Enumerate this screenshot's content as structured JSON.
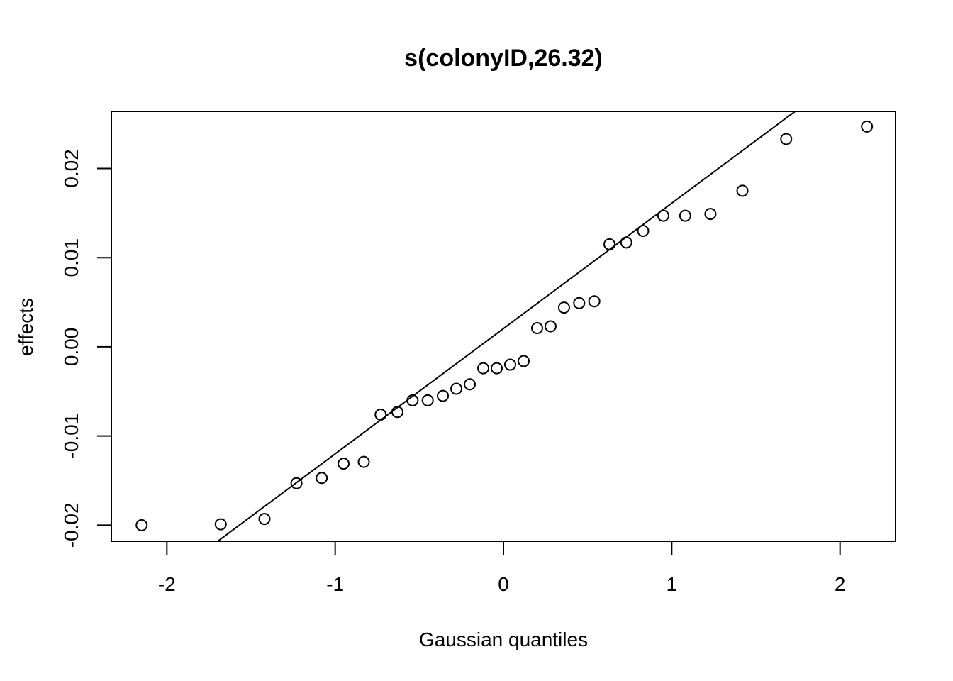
{
  "chart_data": {
    "type": "scatter",
    "title": "s(colonyID,26.32)",
    "xlabel": "Gaussian quantiles",
    "ylabel": "effects",
    "xlim": [
      -2.33,
      2.33
    ],
    "ylim": [
      -0.0218,
      0.0264
    ],
    "x_ticks": [
      -2,
      -1,
      0,
      1,
      2
    ],
    "x_tick_labels": [
      "-2",
      "-1",
      "0",
      "1",
      "2"
    ],
    "y_ticks": [
      -0.02,
      -0.01,
      0.0,
      0.01,
      0.02
    ],
    "y_tick_labels": [
      "-0.02",
      "-0.01",
      "0.00",
      "0.01",
      "0.02"
    ],
    "grid": false,
    "marker": "open-circle",
    "points": [
      {
        "x": -2.15,
        "y": -0.02
      },
      {
        "x": -1.68,
        "y": -0.0199
      },
      {
        "x": -1.42,
        "y": -0.0193
      },
      {
        "x": -1.23,
        "y": -0.0153
      },
      {
        "x": -1.08,
        "y": -0.0147
      },
      {
        "x": -0.95,
        "y": -0.0131
      },
      {
        "x": -0.83,
        "y": -0.0129
      },
      {
        "x": -0.73,
        "y": -0.0076
      },
      {
        "x": -0.63,
        "y": -0.0073
      },
      {
        "x": -0.54,
        "y": -0.006
      },
      {
        "x": -0.45,
        "y": -0.006
      },
      {
        "x": -0.36,
        "y": -0.0055
      },
      {
        "x": -0.28,
        "y": -0.0047
      },
      {
        "x": -0.2,
        "y": -0.0042
      },
      {
        "x": -0.12,
        "y": -0.0024
      },
      {
        "x": -0.04,
        "y": -0.0024
      },
      {
        "x": 0.04,
        "y": -0.002
      },
      {
        "x": 0.12,
        "y": -0.0016
      },
      {
        "x": 0.2,
        "y": 0.0021
      },
      {
        "x": 0.28,
        "y": 0.0023
      },
      {
        "x": 0.36,
        "y": 0.0044
      },
      {
        "x": 0.45,
        "y": 0.0049
      },
      {
        "x": 0.54,
        "y": 0.0051
      },
      {
        "x": 0.63,
        "y": 0.0115
      },
      {
        "x": 0.73,
        "y": 0.0117
      },
      {
        "x": 0.83,
        "y": 0.013
      },
      {
        "x": 0.95,
        "y": 0.0147
      },
      {
        "x": 1.08,
        "y": 0.0147
      },
      {
        "x": 1.23,
        "y": 0.0149
      },
      {
        "x": 1.42,
        "y": 0.0175
      },
      {
        "x": 1.68,
        "y": 0.0233
      },
      {
        "x": 2.16,
        "y": 0.0247
      }
    ],
    "reference_line": {
      "intercept": 0.00205,
      "slope": 0.01405
    }
  }
}
